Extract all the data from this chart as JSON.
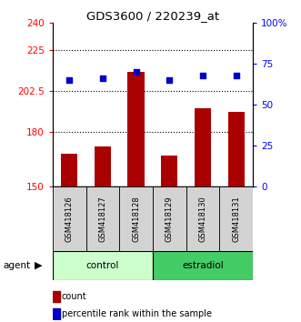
{
  "title": "GDS3600 / 220239_at",
  "samples": [
    "GSM418126",
    "GSM418127",
    "GSM418128",
    "GSM418129",
    "GSM418130",
    "GSM418131"
  ],
  "bar_values": [
    168,
    172,
    213,
    167,
    193,
    191
  ],
  "dot_values": [
    65,
    66,
    70,
    65,
    68,
    68
  ],
  "bar_color": "#aa0000",
  "dot_color": "#0000cc",
  "left_yticks": [
    150,
    180,
    202.5,
    225,
    240
  ],
  "left_ytick_labels": [
    "150",
    "180",
    "202.5",
    "225",
    "240"
  ],
  "right_yticks": [
    0,
    25,
    50,
    75,
    100
  ],
  "right_ytick_labels": [
    "0",
    "25",
    "50",
    "75",
    "100%"
  ],
  "ylim_left": [
    150,
    240
  ],
  "ylim_right": [
    0,
    100
  ],
  "control_color": "#ccffcc",
  "estradiol_color": "#44cc66",
  "sample_box_color": "#d3d3d3",
  "grid_lines": [
    225,
    202.5,
    180
  ]
}
